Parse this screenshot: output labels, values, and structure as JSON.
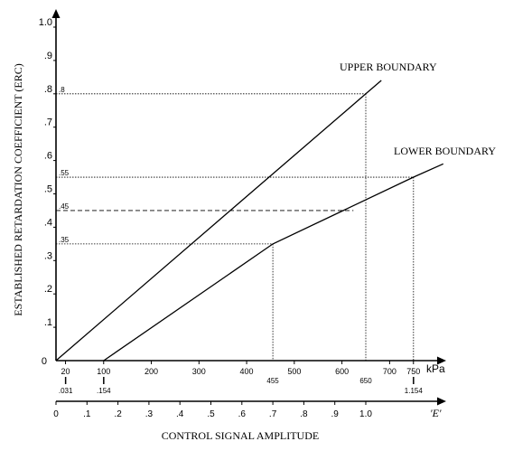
{
  "chart_data": {
    "type": "line",
    "title": "",
    "ylabel": "ESTABLISHED RETARDATION COEFFICIENT (ERC)",
    "xlabel": "CONTROL SIGNAL AMPLITUDE",
    "ylim": [
      0,
      1.0
    ],
    "y_ticks": [
      "0",
      ".1",
      ".2",
      ".3",
      ".4",
      ".5",
      ".6",
      ".7",
      ".8",
      ".9",
      "1.0"
    ],
    "x_ticks_e": [
      "0",
      ".1",
      ".2",
      ".3",
      ".4",
      ".5",
      ".6",
      ".7",
      ".8",
      ".9",
      "1.0"
    ],
    "x_unit_e": "'E'",
    "kpa_ticks": [
      "20",
      "100",
      "200",
      "300",
      "400",
      "500",
      "600",
      "700",
      "750"
    ],
    "kpa_unit": "kPa",
    "special_kpa": [
      {
        "kpa": "455",
        "e": 0.7
      },
      {
        "kpa": "650",
        "e": 1.0
      }
    ],
    "sub_labels": [
      {
        "label": ".031",
        "e": 0.031
      },
      {
        "label": ".154",
        "e": 0.154
      },
      {
        "label": "1.154",
        "e": 1.154
      }
    ],
    "series": [
      {
        "name": "UPPER BOUNDARY",
        "x": [
          0,
          1.0,
          1.05
        ],
        "y": [
          0,
          0.8,
          0.84
        ]
      },
      {
        "name": "LOWER BOUNDARY",
        "x": [
          0.154,
          0.7,
          1.154,
          1.25
        ],
        "y": [
          0,
          0.35,
          0.55,
          0.59
        ]
      }
    ],
    "reference_lines": [
      {
        "label": ".8",
        "y": 0.8,
        "x": 1.0
      },
      {
        "label": ".55",
        "y": 0.55,
        "x": 1.154
      },
      {
        "label": ".45",
        "y": 0.45,
        "x": 0.96,
        "style": "dashed"
      },
      {
        "label": ".35",
        "y": 0.35,
        "x": 0.7
      }
    ]
  }
}
